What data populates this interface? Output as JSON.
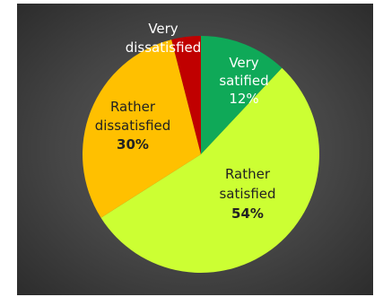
{
  "chart_data": {
    "type": "pie",
    "title": "",
    "start_angle_deg": 0,
    "direction": "clockwise",
    "slices": [
      {
        "line1": "Very",
        "line2": "satified",
        "percent": "12%",
        "value": 12,
        "color": "#0fa958",
        "text_color": "#ffffff",
        "pct_bold": false
      },
      {
        "line1": "Rather",
        "line2": "satisfied",
        "percent": "54%",
        "value": 54,
        "color": "#ccff33",
        "text_color": "#222222",
        "pct_bold": true
      },
      {
        "line1": "Rather",
        "line2": "dissatisfied",
        "percent": "30%",
        "value": 30,
        "color": "#ffc000",
        "text_color": "#222222",
        "pct_bold": true
      },
      {
        "line1": "Very",
        "line2": "dissatisfied",
        "percent": "",
        "value": 4,
        "color": "#c00000",
        "text_color": "#ffffff",
        "pct_bold": false
      }
    ]
  }
}
